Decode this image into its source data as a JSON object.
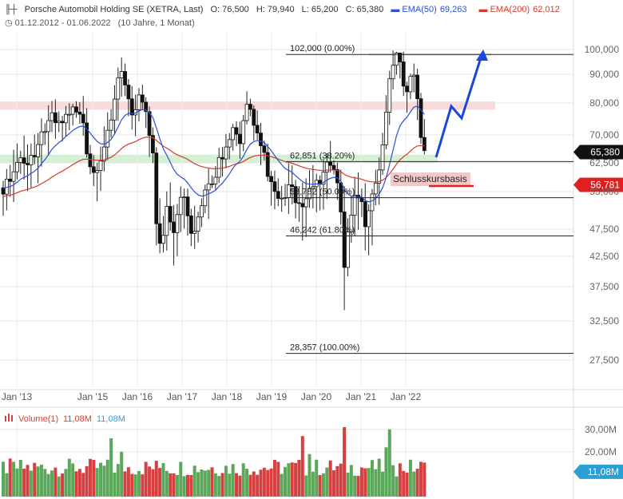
{
  "header": {
    "title": "Porsche Automobil Holding SE (XETRA, Last)",
    "open": "O: 76,500",
    "high": "H: 79,940",
    "low": "L: 65,200",
    "close": "C: 65,380",
    "ema50_label": "EMA(50)",
    "ema50_value": "69,263",
    "ema200_label": "EMA(200)",
    "ema200_value": "62,012",
    "period": "01.12.2012 - 01.06.2022",
    "interval": "(10 Jahre, 1 Monat)"
  },
  "colors": {
    "ema50": "#2a4fd6",
    "ema200": "#d43b2e",
    "up": "#5aa85a",
    "down": "#d64040",
    "arrow": "#1a46e0",
    "resistance_zone": "#f7d0d0",
    "support_zone": "#cdeccd"
  },
  "chart_data": [
    {
      "type": "candlestick",
      "title": "Porsche Automobil Holding SE (XETRA, Last)",
      "y_axis_ticks": [
        "100,000",
        "90,000",
        "80,000",
        "70,000",
        "62,500",
        "55,000",
        "47,500",
        "42,500",
        "37,500",
        "32,500",
        "27,500"
      ],
      "x_axis_ticks": [
        "Jan '13",
        "Jan '15",
        "Jan '16",
        "Jan '17",
        "Jan '18",
        "Jan '19",
        "Jan '20",
        "Jan '21",
        "Jan '22"
      ],
      "ylim": [
        25,
        115
      ],
      "fib_levels": [
        {
          "label": "102,000 (0.00%)",
          "value": 102.0
        },
        {
          "label": "62,851 (38.20%)",
          "value": 62.851
        },
        {
          "label": "53,782 (50.00%)",
          "value": 53.782
        },
        {
          "label": "46,242 (61.80%)",
          "value": 46.242
        },
        {
          "label": "28,357 (100.00%)",
          "value": 28.357
        }
      ],
      "price_badges": [
        {
          "label": "65,380",
          "value": 65.38,
          "color": "#111111"
        },
        {
          "label": "56,781",
          "value": 56.781,
          "color": "#e02020"
        }
      ],
      "annotation": "Schlusskursbasis",
      "last_close": 65.38,
      "ema50_last": 69.263,
      "ema200_last": 62.012
    },
    {
      "type": "bar",
      "title": "Volume(1)",
      "legend": [
        "11,08M",
        "11,08M"
      ],
      "y_axis_ticks": [
        "30,00M",
        "20,00M"
      ],
      "last_value_badge": "11,08M",
      "last_value": 11.08
    }
  ]
}
